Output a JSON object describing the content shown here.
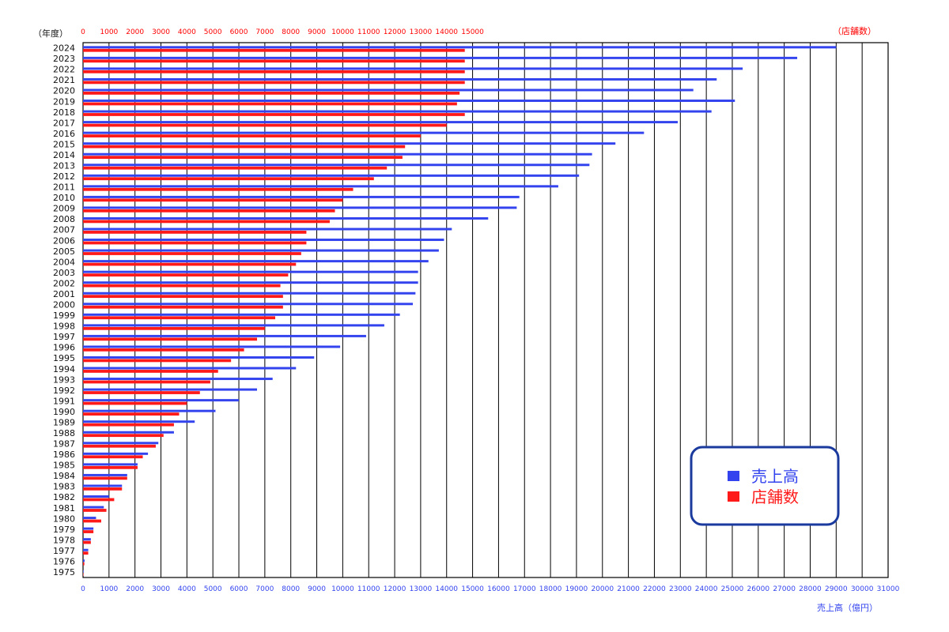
{
  "chart_data": {
    "type": "bar",
    "orientation": "horizontal",
    "yaxis_label": "（年度）",
    "top_axis_label": "（店舗数）",
    "bottom_axis_label": "売上高（億円）",
    "top_axis": {
      "range": [
        0,
        15000
      ],
      "ticks": [
        0,
        1000,
        2000,
        3000,
        4000,
        5000,
        6000,
        7000,
        8000,
        9000,
        10000,
        11000,
        12000,
        13000,
        14000,
        15000
      ]
    },
    "bottom_axis": {
      "range": [
        0,
        31000
      ],
      "ticks": [
        0,
        1000,
        2000,
        3000,
        4000,
        5000,
        6000,
        7000,
        8000,
        9000,
        10000,
        11000,
        12000,
        13000,
        14000,
        15000,
        16000,
        17000,
        18000,
        19000,
        20000,
        21000,
        22000,
        23000,
        24000,
        25000,
        26000,
        27000,
        28000,
        29000,
        30000,
        31000
      ]
    },
    "grid": true,
    "legend_position": "bottom-right",
    "categories": [
      "2024",
      "2023",
      "2022",
      "2021",
      "2020",
      "2019",
      "2018",
      "2017",
      "2016",
      "2015",
      "2014",
      "2013",
      "2012",
      "2011",
      "2010",
      "2009",
      "2008",
      "2007",
      "2006",
      "2005",
      "2004",
      "2003",
      "2002",
      "2001",
      "2000",
      "1999",
      "1998",
      "1997",
      "1996",
      "1995",
      "1994",
      "1993",
      "1992",
      "1991",
      "1990",
      "1989",
      "1988",
      "1987",
      "1986",
      "1985",
      "1984",
      "1983",
      "1982",
      "1981",
      "1980",
      "1979",
      "1978",
      "1977",
      "1976",
      "1975"
    ],
    "series": [
      {
        "name": "売上高",
        "color": "#3344ee",
        "axis": "bottom",
        "values": [
          29000,
          27500,
          25400,
          24400,
          23500,
          25100,
          24200,
          22900,
          21600,
          20500,
          19600,
          19500,
          19100,
          18300,
          16800,
          16700,
          15600,
          14200,
          13900,
          13700,
          13300,
          12900,
          12900,
          12800,
          12700,
          12200,
          11600,
          10900,
          9900,
          8900,
          8200,
          7300,
          6700,
          6000,
          5100,
          4300,
          3500,
          2900,
          2500,
          2100,
          1700,
          1500,
          1000,
          800,
          500,
          400,
          300,
          200,
          60,
          20
        ]
      },
      {
        "name": "店舗数",
        "color": "#ff1a1a",
        "axis": "top",
        "values": [
          14700,
          14700,
          14700,
          14700,
          14500,
          14400,
          14700,
          14000,
          13000,
          12400,
          12300,
          11700,
          11200,
          10400,
          10000,
          9700,
          9500,
          8600,
          8600,
          8400,
          8200,
          7900,
          7600,
          7700,
          7700,
          7400,
          7000,
          6700,
          6200,
          5700,
          5200,
          4900,
          4500,
          4000,
          3700,
          3500,
          3100,
          2800,
          2300,
          2100,
          1700,
          1500,
          1200,
          900,
          700,
          400,
          300,
          200,
          50,
          10
        ]
      }
    ]
  },
  "legend": {
    "items": [
      {
        "label": "売上高",
        "color": "#3344ee"
      },
      {
        "label": "店舗数",
        "color": "#ff1a1a"
      }
    ]
  }
}
